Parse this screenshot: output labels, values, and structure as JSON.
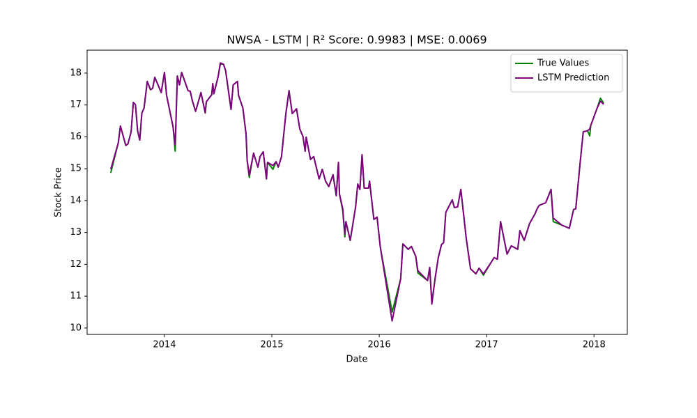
{
  "chart_data": {
    "type": "line",
    "title": "NWSA - LSTM | R² Score: 0.9983 | MSE: 0.0069",
    "x_label": "Date",
    "y_label": "Stock Price",
    "xlim": [
      2013.28,
      2018.31
    ],
    "xticks": [
      2014,
      2015,
      2016,
      2017,
      2018
    ],
    "ylim": [
      9.8,
      18.72
    ],
    "yticks": [
      10,
      11,
      12,
      13,
      14,
      15,
      16,
      17,
      18
    ],
    "grid": false,
    "legend": "upper right",
    "x": [
      2013.5,
      2013.57,
      2013.59,
      2013.64,
      2013.66,
      2013.69,
      2013.71,
      2013.73,
      2013.75,
      2013.77,
      2013.79,
      2013.81,
      2013.84,
      2013.87,
      2013.89,
      2013.91,
      2013.97,
      2014.0,
      2014.02,
      2014.08,
      2014.1,
      2014.12,
      2014.14,
      2014.16,
      2014.22,
      2014.24,
      2014.26,
      2014.29,
      2014.34,
      2014.38,
      2014.39,
      2014.44,
      2014.45,
      2014.46,
      2014.5,
      2014.52,
      2014.55,
      2014.57,
      2014.62,
      2014.64,
      2014.68,
      2014.69,
      2014.73,
      2014.76,
      2014.77,
      2014.79,
      2014.83,
      2014.87,
      2014.89,
      2014.92,
      2014.95,
      2014.96,
      2015.01,
      2015.04,
      2015.06,
      2015.09,
      2015.13,
      2015.16,
      2015.19,
      2015.23,
      2015.26,
      2015.29,
      2015.31,
      2015.32,
      2015.36,
      2015.39,
      2015.44,
      2015.47,
      2015.5,
      2015.53,
      2015.57,
      2015.6,
      2015.62,
      2015.63,
      2015.66,
      2015.68,
      2015.69,
      2015.73,
      2015.78,
      2015.8,
      2015.82,
      2015.84,
      2015.86,
      2015.9,
      2015.91,
      2015.95,
      2015.98,
      2016.01,
      2016.12,
      2016.2,
      2016.22,
      2016.27,
      2016.3,
      2016.34,
      2016.36,
      2016.45,
      2016.47,
      2016.49,
      2016.52,
      2016.55,
      2016.58,
      2016.6,
      2016.62,
      2016.68,
      2016.7,
      2016.73,
      2016.76,
      2016.81,
      2016.85,
      2016.9,
      2016.93,
      2016.97,
      2017.04,
      2017.07,
      2017.1,
      2017.13,
      2017.19,
      2017.23,
      2017.29,
      2017.31,
      2017.35,
      2017.4,
      2017.45,
      2017.47,
      2017.49,
      2017.55,
      2017.6,
      2017.62,
      2017.7,
      2017.77,
      2017.81,
      2017.83,
      2017.87,
      2017.9,
      2017.94,
      2017.96,
      2017.97,
      2018.03,
      2018.06,
      2018.09
    ],
    "series": [
      {
        "name": "True Values",
        "color": "#008000",
        "values": [
          14.87,
          15.81,
          16.34,
          15.73,
          15.78,
          16.16,
          17.08,
          17.01,
          16.19,
          15.9,
          16.75,
          16.9,
          17.74,
          17.48,
          17.52,
          17.87,
          17.39,
          18.02,
          17.3,
          16.32,
          15.55,
          17.91,
          17.63,
          18.02,
          17.45,
          17.43,
          17.13,
          16.8,
          17.39,
          16.75,
          17.1,
          17.32,
          17.67,
          17.35,
          17.89,
          18.28,
          18.28,
          18.07,
          16.86,
          17.63,
          17.74,
          17.3,
          16.91,
          16.08,
          15.27,
          14.72,
          15.49,
          15.05,
          15.38,
          15.53,
          14.68,
          15.2,
          14.98,
          15.22,
          15.05,
          15.38,
          16.71,
          17.45,
          16.73,
          16.88,
          16.25,
          16.01,
          15.55,
          15.99,
          15.29,
          15.38,
          14.68,
          14.98,
          14.61,
          14.44,
          14.81,
          14.15,
          15.2,
          14.2,
          13.69,
          12.86,
          13.34,
          12.75,
          13.8,
          14.52,
          14.35,
          15.44,
          14.39,
          14.39,
          14.61,
          13.41,
          13.48,
          12.54,
          10.5,
          11.55,
          12.64,
          12.47,
          12.56,
          12.25,
          11.73,
          11.49,
          11.9,
          10.81,
          11.55,
          12.21,
          12.62,
          12.68,
          13.63,
          14.02,
          13.78,
          13.8,
          14.35,
          12.82,
          11.86,
          11.7,
          11.88,
          11.66,
          12.05,
          12.21,
          12.16,
          13.34,
          12.32,
          12.58,
          12.47,
          13.06,
          12.75,
          13.28,
          13.58,
          13.74,
          13.85,
          13.93,
          14.35,
          13.34,
          13.23,
          13.13,
          13.72,
          13.74,
          15.16,
          16.16,
          16.19,
          16.03,
          16.36,
          16.91,
          17.21,
          17.06
        ]
      },
      {
        "name": "LSTM Prediction",
        "color": "#800080",
        "values": [
          14.98,
          15.81,
          16.34,
          15.73,
          15.78,
          16.16,
          17.08,
          17.01,
          16.19,
          15.9,
          16.75,
          16.9,
          17.74,
          17.48,
          17.52,
          17.87,
          17.39,
          18.02,
          17.3,
          16.32,
          15.75,
          17.91,
          17.63,
          18.02,
          17.45,
          17.43,
          17.13,
          16.8,
          17.39,
          16.75,
          17.1,
          17.32,
          17.67,
          17.35,
          17.89,
          18.32,
          18.28,
          18.07,
          16.86,
          17.63,
          17.74,
          17.3,
          16.91,
          16.08,
          15.27,
          14.8,
          15.49,
          15.05,
          15.38,
          15.53,
          14.68,
          15.2,
          15.1,
          15.22,
          15.05,
          15.38,
          16.71,
          17.45,
          16.73,
          16.88,
          16.25,
          16.01,
          15.55,
          15.99,
          15.29,
          15.38,
          14.68,
          14.98,
          14.61,
          14.44,
          14.81,
          14.15,
          15.2,
          14.2,
          13.75,
          12.95,
          13.34,
          12.75,
          13.8,
          14.52,
          14.35,
          15.44,
          14.39,
          14.39,
          14.61,
          13.41,
          13.48,
          12.54,
          10.22,
          11.55,
          12.64,
          12.47,
          12.56,
          12.25,
          11.8,
          11.49,
          11.9,
          10.75,
          11.55,
          12.21,
          12.62,
          12.68,
          13.63,
          14.02,
          13.78,
          13.8,
          14.35,
          12.82,
          11.86,
          11.7,
          11.88,
          11.7,
          12.05,
          12.21,
          12.16,
          13.34,
          12.32,
          12.58,
          12.47,
          13.06,
          12.75,
          13.28,
          13.58,
          13.74,
          13.85,
          13.93,
          14.35,
          13.45,
          13.23,
          13.13,
          13.72,
          13.74,
          15.16,
          16.16,
          16.19,
          16.25,
          16.36,
          16.91,
          17.12,
          17.02
        ]
      }
    ]
  }
}
